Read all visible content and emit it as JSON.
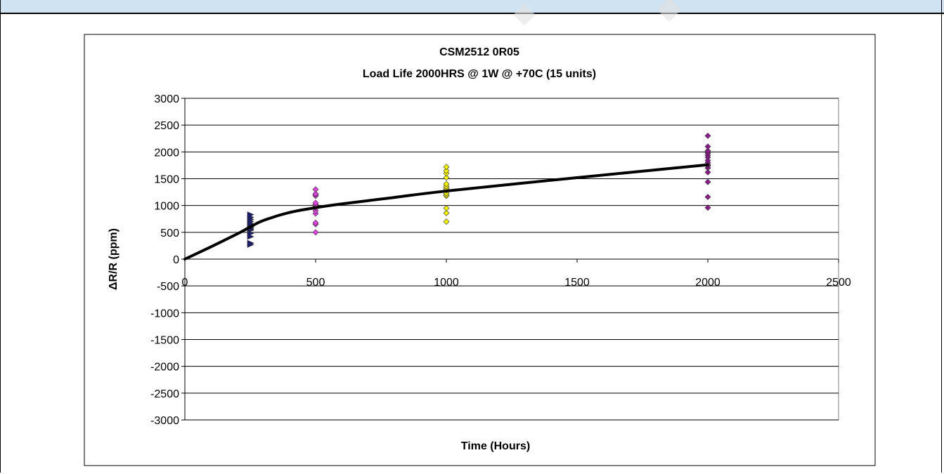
{
  "chart_data": {
    "type": "scatter",
    "title": "CSM2512 0R05",
    "subtitle": "Load Life 2000HRS @ 1W @ +70C (15 units)",
    "xlabel": "Time (Hours)",
    "ylabel": "ΔR/R (ppm)",
    "xlim": [
      0,
      2500
    ],
    "ylim": [
      -3000,
      3000
    ],
    "x_ticks": [
      0,
      500,
      1000,
      1500,
      2000,
      2500
    ],
    "y_ticks": [
      3000,
      2500,
      2000,
      1500,
      1000,
      500,
      0,
      -500,
      -1000,
      -1500,
      -2000,
      -2500,
      -3000
    ],
    "grid": "horizontal",
    "legend": "none",
    "series": [
      {
        "x": 250,
        "marker": "triangle-right",
        "color": "#1a1a6e",
        "values": [
          270,
          300,
          420,
          480,
          540,
          560,
          580,
          600,
          620,
          640,
          660,
          700,
          740,
          780,
          830
        ]
      },
      {
        "x": 500,
        "marker": "diamond",
        "color": "#e040e0",
        "values": [
          500,
          650,
          680,
          850,
          900,
          950,
          980,
          1000,
          1010,
          1020,
          1050,
          1180,
          1200,
          1220,
          1300
        ]
      },
      {
        "x": 1000,
        "marker": "diamond",
        "color": "#f2f200",
        "values": [
          700,
          860,
          950,
          1180,
          1200,
          1230,
          1280,
          1300,
          1330,
          1360,
          1400,
          1520,
          1600,
          1650,
          1720
        ]
      },
      {
        "x": 2000,
        "marker": "diamond",
        "color": "#8b1a8b",
        "values": [
          960,
          1160,
          1440,
          1620,
          1700,
          1740,
          1760,
          1800,
          1840,
          1900,
          1940,
          1980,
          2020,
          2100,
          2300
        ]
      }
    ],
    "trend_line": {
      "x": [
        0,
        100,
        200,
        250,
        300,
        400,
        500,
        600,
        800,
        1000,
        1500,
        2000
      ],
      "y": [
        0,
        230,
        470,
        600,
        720,
        870,
        960,
        1030,
        1150,
        1270,
        1520,
        1760
      ],
      "color": "#000000"
    }
  }
}
